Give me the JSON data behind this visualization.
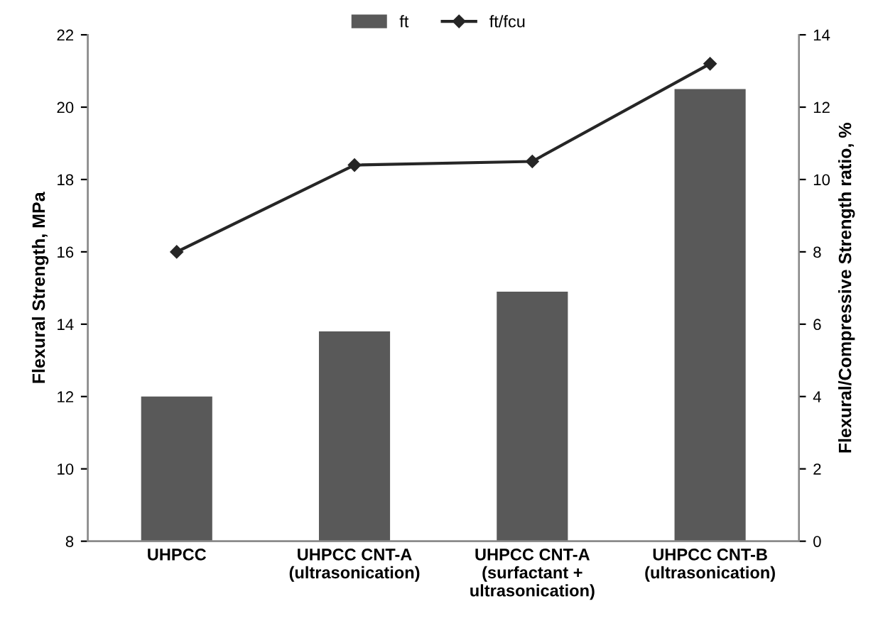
{
  "chart_data": {
    "type": "bar",
    "categories": [
      "UHPCC",
      "UHPCC CNT-A\n(ultrasonication)",
      "UHPCC CNT-A\n(surfactant +\nultrasonication)",
      "UHPCC CNT-B\n(ultrasonication)"
    ],
    "series": [
      {
        "name": "ft",
        "color": "#595959",
        "values": [
          12.0,
          13.8,
          14.9,
          20.5
        ]
      },
      {
        "name": "ft/fcu",
        "type": "line",
        "axis": "y2",
        "color": "#262626",
        "marker": "diamond",
        "values": [
          8.0,
          10.4,
          10.5,
          13.2
        ]
      }
    ],
    "ylabel": "Flexural Strength, MPa",
    "y2label": "Flexural/Compressive Strength ratio, %",
    "ylim": [
      8,
      22
    ],
    "yticks": [
      8,
      10,
      12,
      14,
      16,
      18,
      20,
      22
    ],
    "y2lim": [
      0,
      14
    ],
    "y2ticks": [
      0,
      2,
      4,
      6,
      8,
      10,
      12,
      14
    ],
    "grid": false,
    "legend": "top"
  }
}
